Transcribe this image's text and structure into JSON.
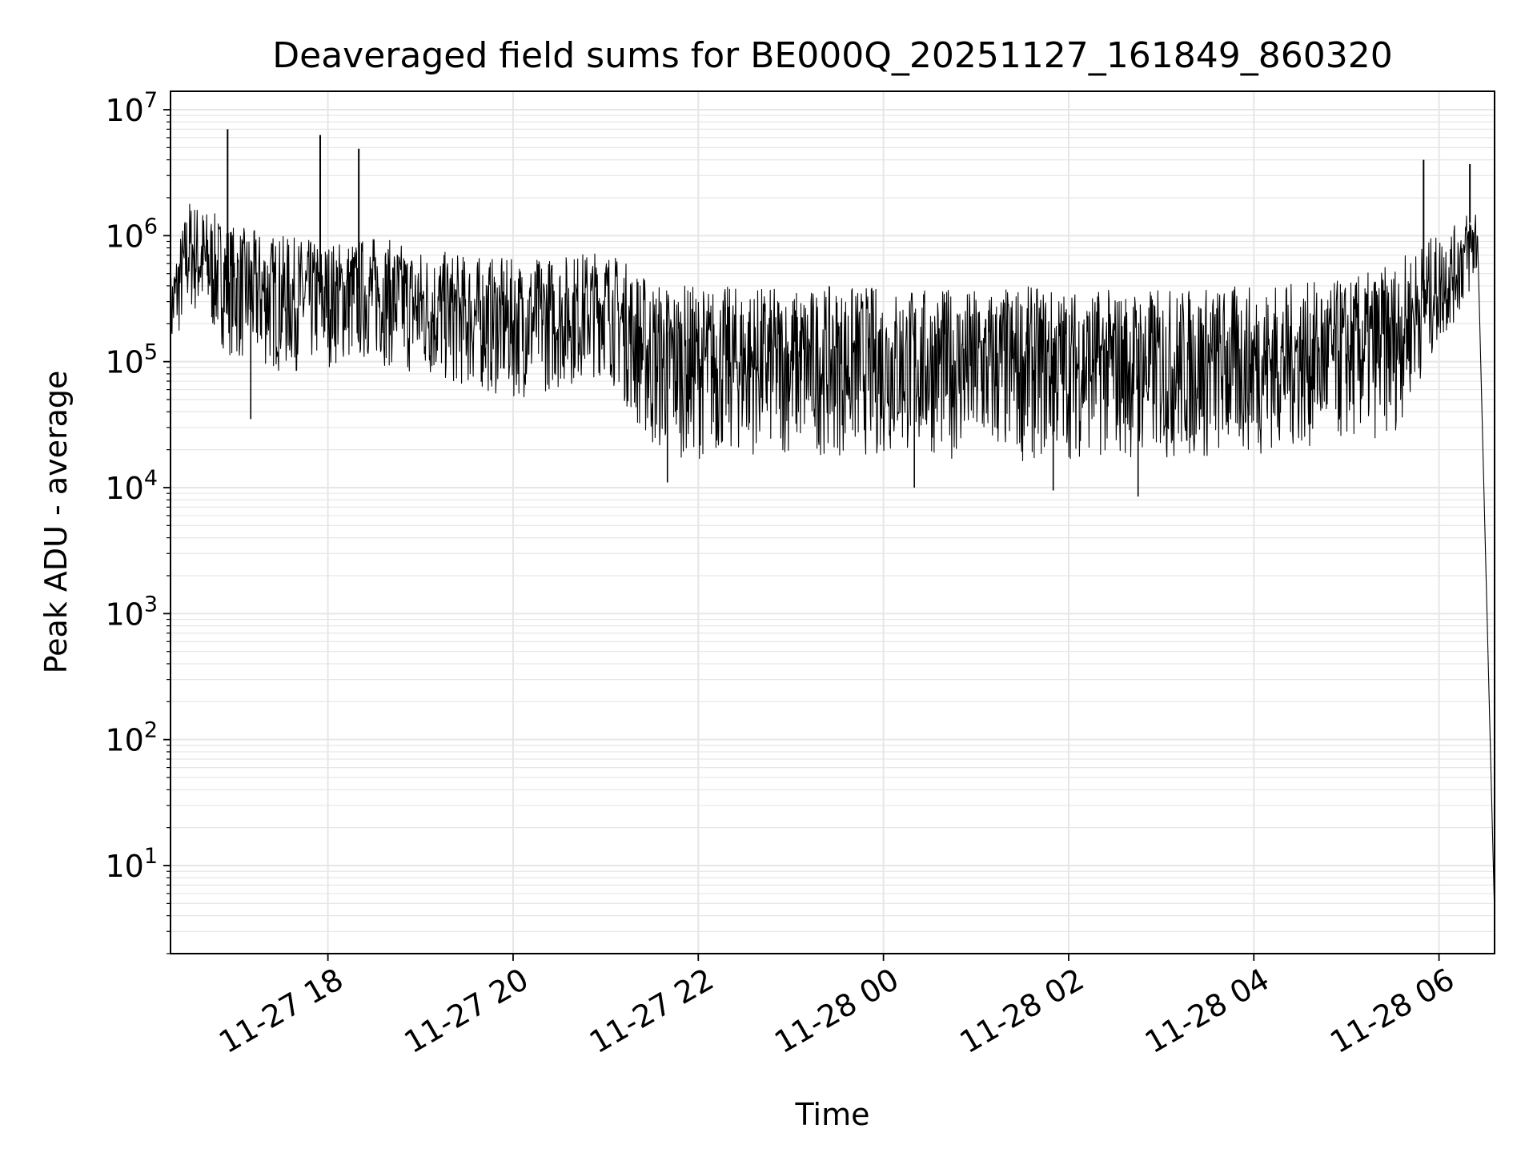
{
  "chart_data": {
    "type": "line",
    "title": "Deaveraged field sums for BE000Q_20251127_161849_860320",
    "xlabel": "Time",
    "ylabel": "Peak ADU - average",
    "yscale": "log",
    "ylim": [
      2,
      14000000
    ],
    "xlim": [
      "2025-11-27 16:18",
      "2025-11-28 06:36"
    ],
    "grid": true,
    "line_color": "#000000",
    "grid_color": "#e6e6e6",
    "x_ticks": [
      "2025-11-27 18:00",
      "2025-11-27 20:00",
      "2025-11-27 22:00",
      "2025-11-28 00:00",
      "2025-11-28 02:00",
      "2025-11-28 04:00",
      "2025-11-28 06:00"
    ],
    "x_tick_labels": [
      "11-27 18",
      "11-27 20",
      "11-27 22",
      "11-28 00",
      "11-28 02",
      "11-28 04",
      "11-28 06"
    ],
    "y_ticks": [
      10,
      100,
      1000,
      10000,
      100000,
      1000000,
      10000000
    ],
    "y_tick_labels": [
      {
        "base": "10",
        "exp": "1"
      },
      {
        "base": "10",
        "exp": "2"
      },
      {
        "base": "10",
        "exp": "3"
      },
      {
        "base": "10",
        "exp": "4"
      },
      {
        "base": "10",
        "exp": "5"
      },
      {
        "base": "10",
        "exp": "6"
      },
      {
        "base": "10",
        "exp": "7"
      }
    ],
    "series": [
      {
        "envelope": {
          "x": [
            "2025-11-27 16:18",
            "2025-11-27 16:30",
            "2025-11-27 17:00",
            "2025-11-27 17:30",
            "2025-11-27 18:00",
            "2025-11-27 18:30",
            "2025-11-27 19:00",
            "2025-11-27 19:30",
            "2025-11-27 20:00",
            "2025-11-27 20:30",
            "2025-11-27 21:00",
            "2025-11-27 21:15",
            "2025-11-27 21:30",
            "2025-11-27 22:00",
            "2025-11-27 22:30",
            "2025-11-27 23:00",
            "2025-11-27 23:30",
            "2025-11-28 00:00",
            "2025-11-28 00:30",
            "2025-11-28 01:00",
            "2025-11-28 01:30",
            "2025-11-28 02:00",
            "2025-11-28 02:30",
            "2025-11-28 03:00",
            "2025-11-28 03:30",
            "2025-11-28 04:00",
            "2025-11-28 04:30",
            "2025-11-28 05:00",
            "2025-11-28 05:30",
            "2025-11-28 05:50",
            "2025-11-28 06:10",
            "2025-11-28 06:25",
            "2025-11-28 06:36"
          ],
          "high": [
            500000,
            2000000,
            1200000,
            1000000,
            900000,
            1000000,
            800000,
            700000,
            650000,
            700000,
            800000,
            600000,
            450000,
            400000,
            400000,
            380000,
            400000,
            400000,
            380000,
            380000,
            400000,
            380000,
            380000,
            380000,
            400000,
            400000,
            420000,
            450000,
            600000,
            900000,
            1200000,
            2000000,
            5
          ],
          "low": [
            100000,
            250000,
            100000,
            80000,
            90000,
            100000,
            70000,
            60000,
            50000,
            60000,
            80000,
            40000,
            18000,
            17000,
            18000,
            18000,
            18000,
            17000,
            18000,
            16000,
            16000,
            17000,
            17000,
            16000,
            16000,
            18000,
            20000,
            22000,
            25000,
            80000,
            200000,
            400000,
            4
          ]
        },
        "spikes": [
          {
            "x": "2025-11-27 16:55",
            "y": 7000000
          },
          {
            "x": "2025-11-27 17:55",
            "y": 6300000
          },
          {
            "x": "2025-11-27 18:20",
            "y": 4900000
          },
          {
            "x": "2025-11-28 05:50",
            "y": 4000000
          },
          {
            "x": "2025-11-28 06:20",
            "y": 3700000
          }
        ],
        "dips": [
          {
            "x": "2025-11-27 17:10",
            "y": 35000
          },
          {
            "x": "2025-11-27 21:40",
            "y": 11000
          },
          {
            "x": "2025-11-28 00:20",
            "y": 10000
          },
          {
            "x": "2025-11-28 01:50",
            "y": 9500
          },
          {
            "x": "2025-11-28 02:45",
            "y": 8500
          }
        ]
      }
    ]
  }
}
